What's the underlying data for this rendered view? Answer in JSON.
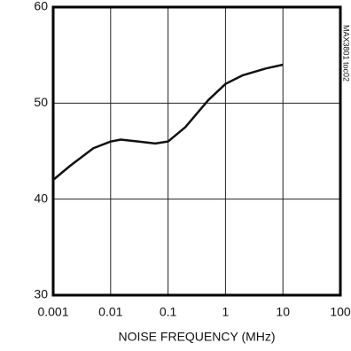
{
  "chart_data": {
    "type": "line",
    "xlabel": "NOISE FREQUENCY (MHz)",
    "annotation": "MAX3801 toc02",
    "xscale": "log",
    "xlim": [
      0.001,
      100
    ],
    "xticks": [
      0.001,
      0.01,
      0.1,
      1,
      10,
      100
    ],
    "ylim": [
      30,
      60
    ],
    "yticks": [
      30,
      40,
      50,
      60
    ],
    "grid": true,
    "series": [
      {
        "color": "#111111",
        "x": [
          0.001,
          0.002,
          0.005,
          0.01,
          0.015,
          0.03,
          0.06,
          0.1,
          0.2,
          0.5,
          1,
          2,
          5,
          10
        ],
        "values": [
          42,
          43.5,
          45.3,
          46,
          46.2,
          46,
          45.8,
          46,
          47.5,
          50.3,
          52,
          52.9,
          53.6,
          54
        ]
      }
    ]
  }
}
